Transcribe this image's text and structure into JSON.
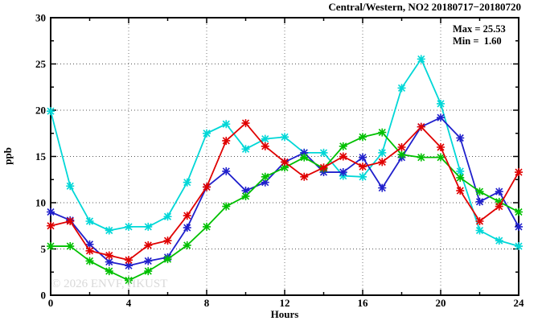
{
  "chart": {
    "title": "Central/Western, NO2 20180717−20180720",
    "max_label": "Max = 25.53",
    "min_label": "Min =  1.60",
    "watermark": "© 2026 ENVF, HKUST",
    "xlabel": "Hours",
    "ylabel": "ppb"
  },
  "chart_data": {
    "type": "line",
    "title": "Central/Western, NO2 20180717−20180720",
    "xlabel": "Hours",
    "ylabel": "ppb",
    "xlim": [
      0,
      24
    ],
    "ylim": [
      0,
      30
    ],
    "x_major_ticks": [
      0,
      4,
      8,
      12,
      16,
      20,
      24
    ],
    "x_minor_step": 2,
    "y_major_ticks": [
      0,
      5,
      10,
      15,
      20,
      25,
      30
    ],
    "y_minor_step": 2.5,
    "grid": true,
    "legend": false,
    "marker": "asterisk",
    "stats": {
      "max": 25.53,
      "min": 1.6
    },
    "x": [
      0,
      1,
      2,
      3,
      4,
      5,
      6,
      7,
      8,
      9,
      10,
      11,
      12,
      13,
      14,
      15,
      16,
      17,
      18,
      19,
      20,
      21,
      22,
      23,
      24
    ],
    "series": [
      {
        "name": "cyan-line",
        "color": "#00d7d7",
        "values": [
          19.9,
          11.8,
          8.0,
          7.0,
          7.4,
          7.4,
          8.5,
          12.2,
          17.5,
          18.5,
          15.8,
          16.9,
          17.1,
          15.4,
          15.4,
          12.9,
          12.8,
          15.4,
          22.4,
          25.53,
          20.7,
          13.4,
          7.0,
          5.9,
          5.3
        ]
      },
      {
        "name": "blue-line",
        "color": "#2020cc",
        "values": [
          9.0,
          8.1,
          5.5,
          3.6,
          3.2,
          3.7,
          4.1,
          7.3,
          11.7,
          13.4,
          11.3,
          12.2,
          14.4,
          15.4,
          13.3,
          13.3,
          14.9,
          11.6,
          14.9,
          18.2,
          19.2,
          17.0,
          10.1,
          11.2,
          7.4
        ]
      },
      {
        "name": "green-line",
        "color": "#00c000",
        "values": [
          5.3,
          5.3,
          3.7,
          2.6,
          1.6,
          2.6,
          3.9,
          5.4,
          7.4,
          9.6,
          10.7,
          12.8,
          13.8,
          14.9,
          13.7,
          16.1,
          17.1,
          17.6,
          15.2,
          14.9,
          14.9,
          12.7,
          11.2,
          10.1,
          9.0
        ]
      },
      {
        "name": "red-line",
        "color": "#e00000",
        "values": [
          7.5,
          8.0,
          4.8,
          4.3,
          3.8,
          5.4,
          5.9,
          8.6,
          11.7,
          16.7,
          18.6,
          16.1,
          14.4,
          12.8,
          13.8,
          15.0,
          13.9,
          14.4,
          16.0,
          18.2,
          16.0,
          11.3,
          8.0,
          9.6,
          13.3
        ]
      }
    ]
  }
}
